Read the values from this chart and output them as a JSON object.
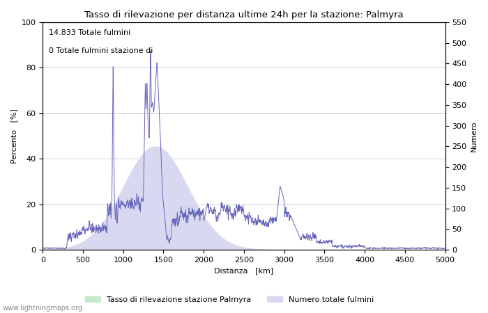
{
  "title": "Tasso di rilevazione per distanza ultime 24h per la stazione: Palmyra",
  "xlabel": "Distanza   [km]",
  "ylabel_left": "Percento   [%]",
  "ylabel_right": "Numero",
  "annotation_line1": "14.833 Totale fulmini",
  "annotation_line2": "0 Totale fulmini stazione di",
  "xlim": [
    0,
    5000
  ],
  "ylim_left": [
    0,
    100
  ],
  "ylim_right": [
    0,
    550
  ],
  "xticks": [
    0,
    500,
    1000,
    1500,
    2000,
    2500,
    3000,
    3500,
    4000,
    4500,
    5000
  ],
  "yticks_left": [
    0,
    20,
    40,
    60,
    80,
    100
  ],
  "yticks_right": [
    0,
    50,
    100,
    150,
    200,
    250,
    300,
    350,
    400,
    450,
    500,
    550
  ],
  "legend_label_green": "Tasso di rilevazione stazione Palmyra",
  "legend_label_blue": "Numero totale fulmini",
  "watermark": "www.lightningmaps.org",
  "line_color": "#6666bb",
  "fill_color": "#d8d8f0",
  "green_fill_color": "#c8e8c8",
  "background_color": "#ffffff",
  "grid_color": "#aaaaaa"
}
